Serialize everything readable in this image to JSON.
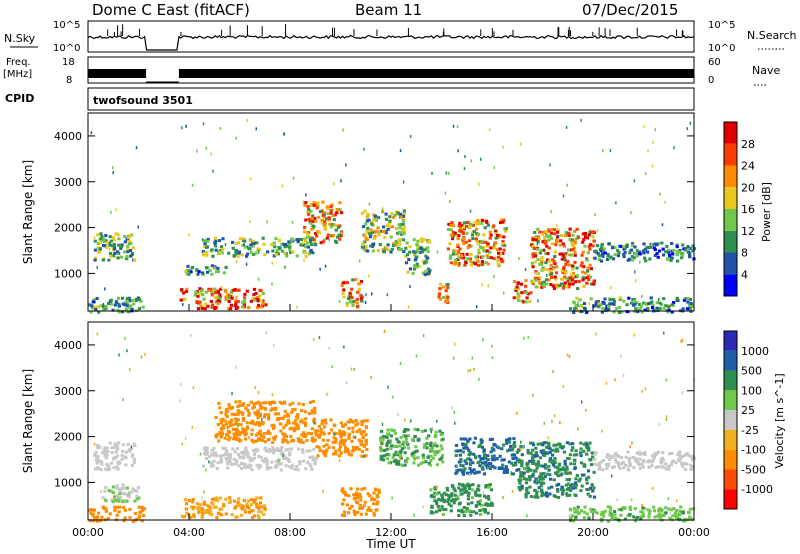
{
  "header": {
    "station": "Dome C East (fitACF)",
    "beam": "Beam 11",
    "date": "07/Dec/2015"
  },
  "top_panels": {
    "nsky_label": "N.Sky",
    "nsky_ticks": [
      "10^5",
      "10^0"
    ],
    "nsearch_label": "N.Search",
    "nsearch_ticks": [
      "10^5",
      "10^0"
    ],
    "freq_label_1": "Freq.",
    "freq_label_2": "[MHz]",
    "freq_ticks": [
      "18",
      "8"
    ],
    "nave_label": "Nave",
    "nave_ticks": [
      "60",
      "0"
    ],
    "cpid_label": "CPID",
    "cpid_value": "twofsound 3501"
  },
  "axes": {
    "xlabel": "Time UT",
    "x_ticks": [
      "00:00",
      "04:00",
      "08:00",
      "12:00",
      "16:00",
      "20:00",
      "00:00"
    ],
    "ylabel": "Slant Range [km]",
    "y_ticks": [
      "1000",
      "2000",
      "3000",
      "4000"
    ]
  },
  "colors": {
    "power": [
      "#0000ff",
      "#1f55a8",
      "#2f8f50",
      "#6ec84a",
      "#e8c81a",
      "#ff8c00",
      "#ff3c00",
      "#e00000"
    ],
    "velocity": [
      "#ff0000",
      "#ff4a00",
      "#ff8c00",
      "#f0b020",
      "#c8c8c8",
      "#6ec84a",
      "#2f8f50",
      "#1f5fa8",
      "#2a2ab4"
    ]
  },
  "chart_data": [
    {
      "type": "heatmap",
      "name": "power",
      "x_range_hours": [
        0,
        24
      ],
      "y_range_km": [
        180,
        4500
      ],
      "colorbar_label": "Power [dB]",
      "colorbar_ticks": [
        "4",
        "8",
        "12",
        "16",
        "20",
        "24",
        "28"
      ],
      "colorbar_range": [
        0,
        32
      ],
      "gap_hours": [
        2.3,
        3.6
      ],
      "patches": [
        {
          "t": [
            0.2,
            1.8
          ],
          "r": [
            1300,
            1900
          ],
          "level": 12
        },
        {
          "t": [
            0.0,
            2.2
          ],
          "r": [
            180,
            500
          ],
          "level": 10
        },
        {
          "t": [
            3.6,
            7.0
          ],
          "r": [
            250,
            700
          ],
          "level": 26
        },
        {
          "t": [
            3.8,
            5.5
          ],
          "r": [
            1000,
            1200
          ],
          "level": 10
        },
        {
          "t": [
            4.5,
            9.0
          ],
          "r": [
            1400,
            1800
          ],
          "level": 12
        },
        {
          "t": [
            8.5,
            10.0
          ],
          "r": [
            1700,
            2600
          ],
          "level": 20
        },
        {
          "t": [
            10.0,
            10.8
          ],
          "r": [
            300,
            900
          ],
          "level": 22
        },
        {
          "t": [
            10.8,
            12.5
          ],
          "r": [
            1500,
            2400
          ],
          "level": 14
        },
        {
          "t": [
            12.5,
            13.5
          ],
          "r": [
            1000,
            1800
          ],
          "level": 12
        },
        {
          "t": [
            13.8,
            14.2
          ],
          "r": [
            300,
            800
          ],
          "level": 18
        },
        {
          "t": [
            14.2,
            16.5
          ],
          "r": [
            1200,
            2200
          ],
          "level": 22
        },
        {
          "t": [
            16.8,
            17.5
          ],
          "r": [
            400,
            900
          ],
          "level": 24
        },
        {
          "t": [
            17.5,
            20.0
          ],
          "r": [
            700,
            2000
          ],
          "level": 22
        },
        {
          "t": [
            20.0,
            24.0
          ],
          "r": [
            1300,
            1700
          ],
          "level": 8
        },
        {
          "t": [
            19.0,
            24.0
          ],
          "r": [
            180,
            500
          ],
          "level": 10
        }
      ]
    },
    {
      "type": "heatmap",
      "name": "velocity",
      "x_range_hours": [
        0,
        24
      ],
      "y_range_km": [
        180,
        4500
      ],
      "colorbar_label": "Velocity [m s^-1]",
      "colorbar_ticks": [
        "1000",
        "500",
        "100",
        "25",
        "-25",
        "-100",
        "-500",
        "-1000"
      ],
      "gap_hours": [
        2.3,
        3.6
      ],
      "patches": [
        {
          "t": [
            0.2,
            1.8
          ],
          "r": [
            1300,
            1900
          ],
          "level": 0
        },
        {
          "t": [
            0.5,
            2.0
          ],
          "r": [
            600,
            1000
          ],
          "level": 20
        },
        {
          "t": [
            0.0,
            2.2
          ],
          "r": [
            180,
            500
          ],
          "level": -200
        },
        {
          "t": [
            3.6,
            7.0
          ],
          "r": [
            250,
            700
          ],
          "level": -100
        },
        {
          "t": [
            4.5,
            9.0
          ],
          "r": [
            1300,
            1800
          ],
          "level": 0
        },
        {
          "t": [
            5.0,
            9.0
          ],
          "r": [
            1900,
            2800
          ],
          "level": -300
        },
        {
          "t": [
            9.0,
            11.0
          ],
          "r": [
            1600,
            2400
          ],
          "level": -200
        },
        {
          "t": [
            10.0,
            11.5
          ],
          "r": [
            300,
            900
          ],
          "level": -200
        },
        {
          "t": [
            11.5,
            14.0
          ],
          "r": [
            1400,
            2200
          ],
          "level": 100
        },
        {
          "t": [
            13.5,
            16.0
          ],
          "r": [
            300,
            1000
          ],
          "level": 150
        },
        {
          "t": [
            14.5,
            17.0
          ],
          "r": [
            1200,
            2000
          ],
          "level": 600
        },
        {
          "t": [
            17.0,
            20.0
          ],
          "r": [
            700,
            1900
          ],
          "level": 400
        },
        {
          "t": [
            20.0,
            24.0
          ],
          "r": [
            1300,
            1700
          ],
          "level": 0
        },
        {
          "t": [
            19.0,
            24.0
          ],
          "r": [
            180,
            500
          ],
          "level": 80
        }
      ]
    }
  ]
}
